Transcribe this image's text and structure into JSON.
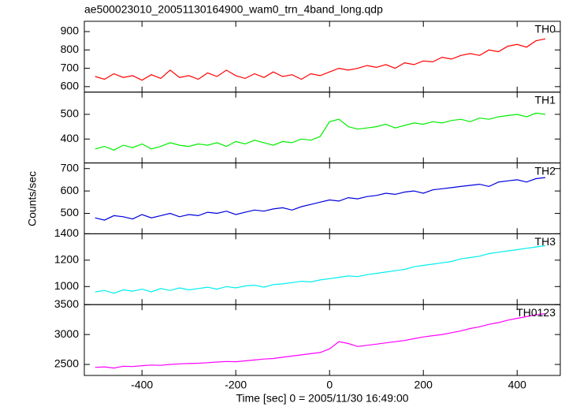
{
  "chart_data": {
    "type": "line",
    "title": "ae500023010_20051130164900_wam0_trn_4band_long.qdp",
    "xlabel": "Time [sec] 0 = 2005/11/30 16:49:00",
    "ylabel": "Counts/sec",
    "xlim": [
      -523,
      492
    ],
    "xticks": [
      -400,
      -200,
      0,
      200,
      400
    ],
    "x": [
      -500,
      -480,
      -460,
      -440,
      -420,
      -400,
      -380,
      -360,
      -340,
      -320,
      -300,
      -280,
      -260,
      -240,
      -220,
      -200,
      -180,
      -160,
      -140,
      -120,
      -100,
      -80,
      -60,
      -40,
      -20,
      0,
      20,
      40,
      60,
      80,
      100,
      120,
      140,
      160,
      180,
      200,
      220,
      240,
      260,
      280,
      300,
      320,
      340,
      360,
      380,
      400,
      420,
      440,
      460
    ],
    "series": [
      {
        "name": "TH0",
        "color": "#ff0000",
        "ylim": [
          570,
          956
        ],
        "yticks": [
          600,
          700,
          800,
          900
        ],
        "values": [
          655,
          640,
          670,
          650,
          660,
          635,
          665,
          645,
          690,
          650,
          660,
          640,
          675,
          655,
          690,
          660,
          645,
          670,
          650,
          680,
          655,
          665,
          640,
          670,
          660,
          680,
          700,
          690,
          700,
          715,
          705,
          720,
          700,
          730,
          720,
          740,
          735,
          760,
          750,
          770,
          780,
          770,
          800,
          790,
          820,
          830,
          815,
          850,
          860
        ]
      },
      {
        "name": "TH1",
        "color": "#00ee00",
        "ylim": [
          303,
          590
        ],
        "yticks": [
          400,
          500
        ],
        "values": [
          360,
          370,
          355,
          375,
          365,
          380,
          360,
          370,
          385,
          375,
          370,
          380,
          375,
          385,
          370,
          390,
          380,
          395,
          385,
          375,
          390,
          385,
          400,
          395,
          410,
          470,
          480,
          450,
          440,
          445,
          450,
          460,
          445,
          455,
          465,
          460,
          470,
          465,
          475,
          480,
          470,
          485,
          480,
          490,
          495,
          500,
          490,
          505,
          500
        ]
      },
      {
        "name": "TH2",
        "color": "#0000dd",
        "ylim": [
          409,
          725
        ],
        "yticks": [
          500,
          600,
          700
        ],
        "values": [
          480,
          470,
          490,
          485,
          475,
          495,
          480,
          490,
          500,
          485,
          495,
          490,
          505,
          500,
          510,
          495,
          505,
          515,
          510,
          520,
          525,
          515,
          530,
          540,
          550,
          560,
          555,
          570,
          565,
          575,
          580,
          590,
          585,
          595,
          600,
          590,
          605,
          610,
          615,
          620,
          625,
          630,
          620,
          640,
          645,
          650,
          640,
          655,
          660
        ]
      },
      {
        "name": "TH3",
        "color": "#00eeee",
        "ylim": [
          863,
          1400
        ],
        "yticks": [
          1000,
          1200,
          1400
        ],
        "values": [
          960,
          970,
          950,
          975,
          965,
          980,
          960,
          985,
          970,
          990,
          975,
          985,
          995,
          980,
          1000,
          990,
          1005,
          1010,
          995,
          1015,
          1020,
          1030,
          1040,
          1035,
          1050,
          1060,
          1070,
          1080,
          1075,
          1090,
          1100,
          1110,
          1120,
          1130,
          1150,
          1160,
          1170,
          1180,
          1190,
          1210,
          1220,
          1230,
          1250,
          1260,
          1270,
          1280,
          1290,
          1300,
          1310
        ]
      },
      {
        "name": "TH0123",
        "color": "#ff00ff",
        "ylim": [
          2316,
          3500
        ],
        "yticks": [
          2500,
          3000,
          3500
        ],
        "values": [
          2450,
          2460,
          2440,
          2470,
          2465,
          2480,
          2490,
          2485,
          2500,
          2510,
          2515,
          2520,
          2530,
          2540,
          2550,
          2545,
          2560,
          2575,
          2590,
          2600,
          2620,
          2640,
          2660,
          2680,
          2700,
          2760,
          2880,
          2850,
          2800,
          2820,
          2840,
          2860,
          2880,
          2900,
          2930,
          2960,
          2980,
          3000,
          3030,
          3060,
          3100,
          3130,
          3170,
          3200,
          3240,
          3270,
          3300,
          3330,
          3350
        ]
      }
    ]
  }
}
